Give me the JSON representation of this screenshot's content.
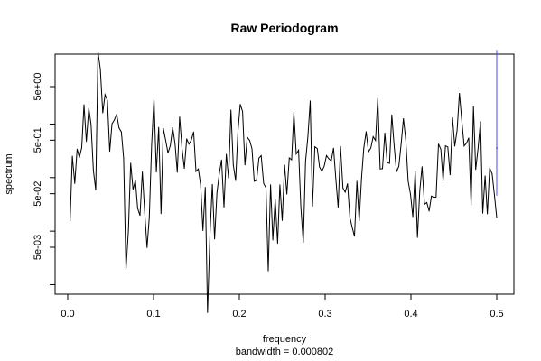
{
  "chart_data": {
    "type": "line",
    "title": "Raw Periodogram",
    "xlabel": "frequency",
    "sublabel": "bandwidth = 0.000802",
    "ylabel": "spectrum",
    "y_log_scale": true,
    "xlim": [
      0,
      0.5
    ],
    "ylim": [
      0.0005,
      40
    ],
    "x_ticks": [
      0.0,
      0.1,
      0.2,
      0.3,
      0.4,
      0.5
    ],
    "x_tick_labels": [
      "0.0",
      "0.1",
      "0.2",
      "0.3",
      "0.4",
      "0.5"
    ],
    "y_ticks": [
      0.001,
      0.005,
      0.01,
      0.05,
      0.1,
      0.5,
      1,
      5
    ],
    "y_tick_labels": [
      "",
      "5e-03",
      "",
      "5e-02",
      "",
      "5e-01",
      "",
      "5e+00"
    ],
    "line_color": "#000000",
    "ci_bar_color": "#4a4aff",
    "ci_bar": {
      "x": 0.5,
      "y_low": 0.046,
      "y_high": 24.2,
      "y_center": 0.356
    },
    "series": [
      {
        "x": [
          0.0027,
          0.0054,
          0.0082,
          0.0109,
          0.0136,
          0.0163,
          0.019,
          0.0217,
          0.0245,
          0.0272,
          0.0299,
          0.0326,
          0.0353,
          0.038,
          0.0408,
          0.0435,
          0.0462,
          0.0489,
          0.0516,
          0.0543,
          0.0571,
          0.0598,
          0.0625,
          0.0652,
          0.0679,
          0.0707,
          0.0734,
          0.0761,
          0.0788,
          0.0815,
          0.0842,
          0.087,
          0.0897,
          0.0924,
          0.0951,
          0.0978,
          0.1005,
          0.1033,
          0.106,
          0.1087,
          0.1114,
          0.1141,
          0.1168,
          0.1196,
          0.1223,
          0.125,
          0.1277,
          0.1304,
          0.1332,
          0.1359,
          0.1386,
          0.1413,
          0.144,
          0.1467,
          0.1495,
          0.1522,
          0.1549,
          0.1576,
          0.1603,
          0.163,
          0.1658,
          0.1685,
          0.1712,
          0.1739,
          0.1766,
          0.1793,
          0.1821,
          0.1848,
          0.1875,
          0.1902,
          0.1929,
          0.1957,
          0.1984,
          0.2011,
          0.2038,
          0.2065,
          0.2092,
          0.212,
          0.2147,
          0.2174,
          0.2201,
          0.2228,
          0.2255,
          0.2283,
          0.231,
          0.2337,
          0.2364,
          0.2391,
          0.2418,
          0.2446,
          0.2473,
          0.25,
          0.2527,
          0.2554,
          0.2582,
          0.2609,
          0.2636,
          0.2663,
          0.269,
          0.2717,
          0.2745,
          0.2772,
          0.2799,
          0.2826,
          0.2853,
          0.288,
          0.2908,
          0.2935,
          0.2962,
          0.2989,
          0.3016,
          0.3043,
          0.3071,
          0.3098,
          0.3125,
          0.3152,
          0.3179,
          0.3207,
          0.3234,
          0.3261,
          0.3288,
          0.3315,
          0.3342,
          0.337,
          0.3397,
          0.3424,
          0.3451,
          0.3478,
          0.3505,
          0.3533,
          0.356,
          0.3587,
          0.3614,
          0.3641,
          0.3668,
          0.3696,
          0.3723,
          0.375,
          0.3777,
          0.3804,
          0.3832,
          0.3859,
          0.3886,
          0.3913,
          0.394,
          0.3967,
          0.3995,
          0.4022,
          0.4049,
          0.4076,
          0.4103,
          0.413,
          0.4158,
          0.4185,
          0.4212,
          0.4239,
          0.4266,
          0.4293,
          0.4321,
          0.4348,
          0.4375,
          0.4402,
          0.4429,
          0.4457,
          0.4484,
          0.4511,
          0.4538,
          0.4565,
          0.4592,
          0.462,
          0.4647,
          0.4674,
          0.4701,
          0.4728,
          0.4755,
          0.4783,
          0.481,
          0.4837,
          0.4864,
          0.4891,
          0.4918,
          0.4946,
          0.4973,
          0.5
        ],
        "values": [
          0.0153,
          0.253,
          0.0773,
          0.342,
          0.237,
          0.364,
          2.31,
          0.471,
          1.98,
          0.99,
          0.136,
          0.0585,
          22.1,
          10.6,
          1.61,
          3.54,
          2.76,
          0.308,
          1.01,
          1.19,
          1.52,
          0.845,
          0.714,
          0.23,
          0.0019,
          0.0105,
          0.187,
          0.0598,
          0.0897,
          0.0267,
          0.0196,
          0.128,
          0.0227,
          0.0049,
          0.0181,
          0.414,
          3.03,
          0.126,
          0.873,
          0.0211,
          0.836,
          0.5,
          0.289,
          0.397,
          0.862,
          0.431,
          0.125,
          1.37,
          0.356,
          0.148,
          0.53,
          0.422,
          0.502,
          0.714,
          0.13,
          0.145,
          0.0721,
          0.0102,
          0.066,
          0.0003,
          0.0087,
          0.075,
          0.0071,
          0.0519,
          0.118,
          0.214,
          0.0279,
          0.274,
          0.0979,
          1.84,
          0.174,
          0.0876,
          0.751,
          2.35,
          1.71,
          0.171,
          0.572,
          0.495,
          0.346,
          0.0853,
          0.0891,
          0.231,
          0.258,
          0.078,
          0.0643,
          0.0018,
          0.0737,
          0.0068,
          0.0394,
          0.0059,
          0.0737,
          0.0157,
          0.173,
          0.0488,
          0.233,
          0.216,
          1.66,
          0.277,
          0.325,
          0.0282,
          0.0061,
          0.201,
          0.578,
          2.72,
          0.0291,
          0.376,
          0.349,
          0.157,
          0.131,
          0.164,
          0.259,
          0.225,
          0.205,
          0.356,
          0.0917,
          0.0278,
          0.384,
          0.0642,
          0.0535,
          0.077,
          0.0181,
          0.0119,
          0.008,
          0.0863,
          0.0154,
          0.0978,
          0.356,
          0.724,
          0.302,
          0.357,
          0.581,
          0.492,
          3.06,
          0.145,
          0.147,
          0.682,
          0.19,
          0.185,
          1.49,
          0.394,
          0.128,
          0.163,
          0.435,
          1.27,
          0.503,
          0.0856,
          0.0491,
          0.0185,
          0.133,
          0.0076,
          0.0569,
          0.16,
          0.0318,
          0.0341,
          0.0236,
          0.0451,
          0.0427,
          0.0433,
          0.424,
          0.338,
          0.0865,
          0.392,
          0.374,
          0.112,
          1.33,
          0.384,
          0.764,
          3.76,
          1.21,
          0.39,
          0.441,
          0.551,
          0.0305,
          2.13,
          0.141,
          0.364,
          1.12,
          0.0215,
          0.108,
          0.0209,
          0.152,
          0.117,
          0.0479,
          0.0178
        ]
      }
    ]
  }
}
